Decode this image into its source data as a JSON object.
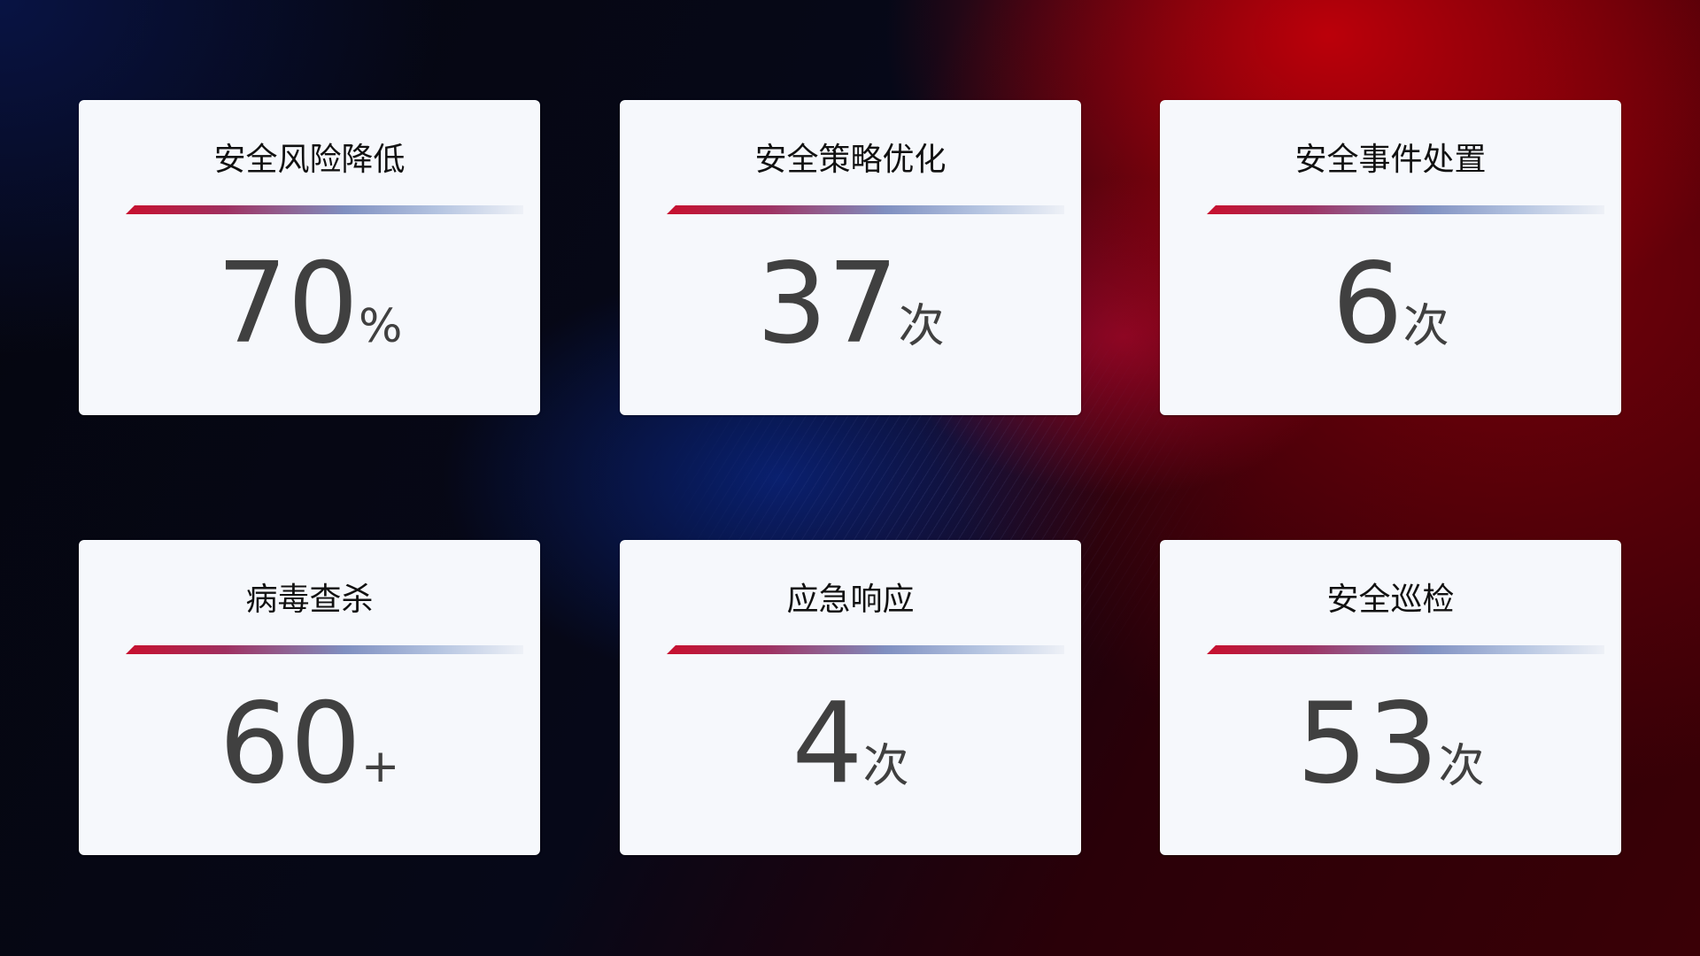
{
  "cards": [
    {
      "title": "安全风险降低",
      "value": "70",
      "unit": "%"
    },
    {
      "title": "安全策略优化",
      "value": "37",
      "unit": "次"
    },
    {
      "title": "安全事件处置",
      "value": "6",
      "unit": "次"
    },
    {
      "title": "病毒查杀",
      "value": "60",
      "unit": "+"
    },
    {
      "title": "应急响应",
      "value": "4",
      "unit": "次"
    },
    {
      "title": "安全巡检",
      "value": "53",
      "unit": "次"
    }
  ],
  "colors": {
    "accent_red": "#c8102e",
    "accent_blue": "#7f8fc0",
    "card_bg": "#f6f8fc",
    "value_text": "#404040"
  }
}
